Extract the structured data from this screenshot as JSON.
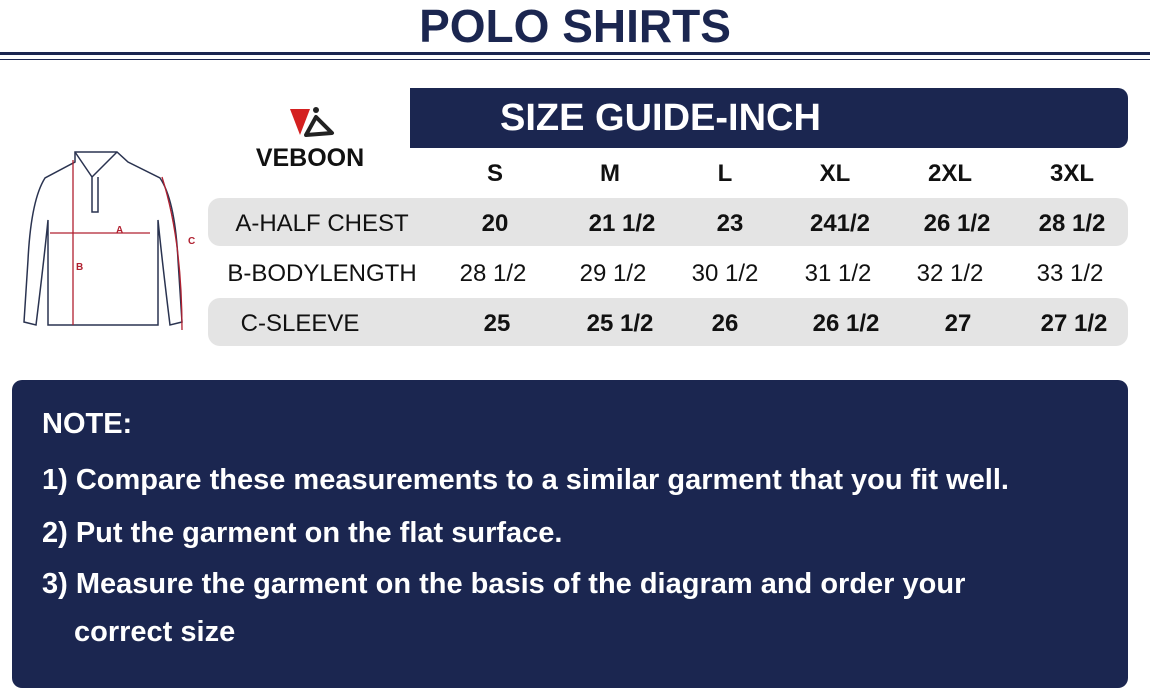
{
  "title": "POLO SHIRTS",
  "brand": "VEBOON",
  "banner": "SIZE GUIDE-INCH",
  "diagram_labels": [
    "A",
    "B",
    "C"
  ],
  "sizes": [
    "S",
    "M",
    "L",
    "XL",
    "2XL",
    "3XL"
  ],
  "rows": [
    {
      "label": "A-HALF CHEST",
      "values": [
        "20",
        "21 1/2",
        "23",
        "241/2",
        "26 1/2",
        "28 1/2"
      ]
    },
    {
      "label": "B-BODYLENGTH",
      "values": [
        "28 1/2",
        "29 1/2",
        "30 1/2",
        "31 1/2",
        "32 1/2",
        "33 1/2"
      ]
    },
    {
      "label": "C-SLEEVE",
      "values": [
        "25",
        "25 1/2",
        "26",
        "26 1/2",
        "27",
        "27 1/2"
      ]
    }
  ],
  "note": {
    "heading": "NOTE:",
    "items": [
      "1) Compare these measurements to a similar garment that you fit well.",
      "2) Put the garment on the flat surface.",
      "3) Measure the garment on the basis of the diagram and order your",
      "correct size"
    ]
  },
  "colors": {
    "navy": "#1b2650",
    "accent": "#d42020",
    "row": "#e4e4e4"
  }
}
